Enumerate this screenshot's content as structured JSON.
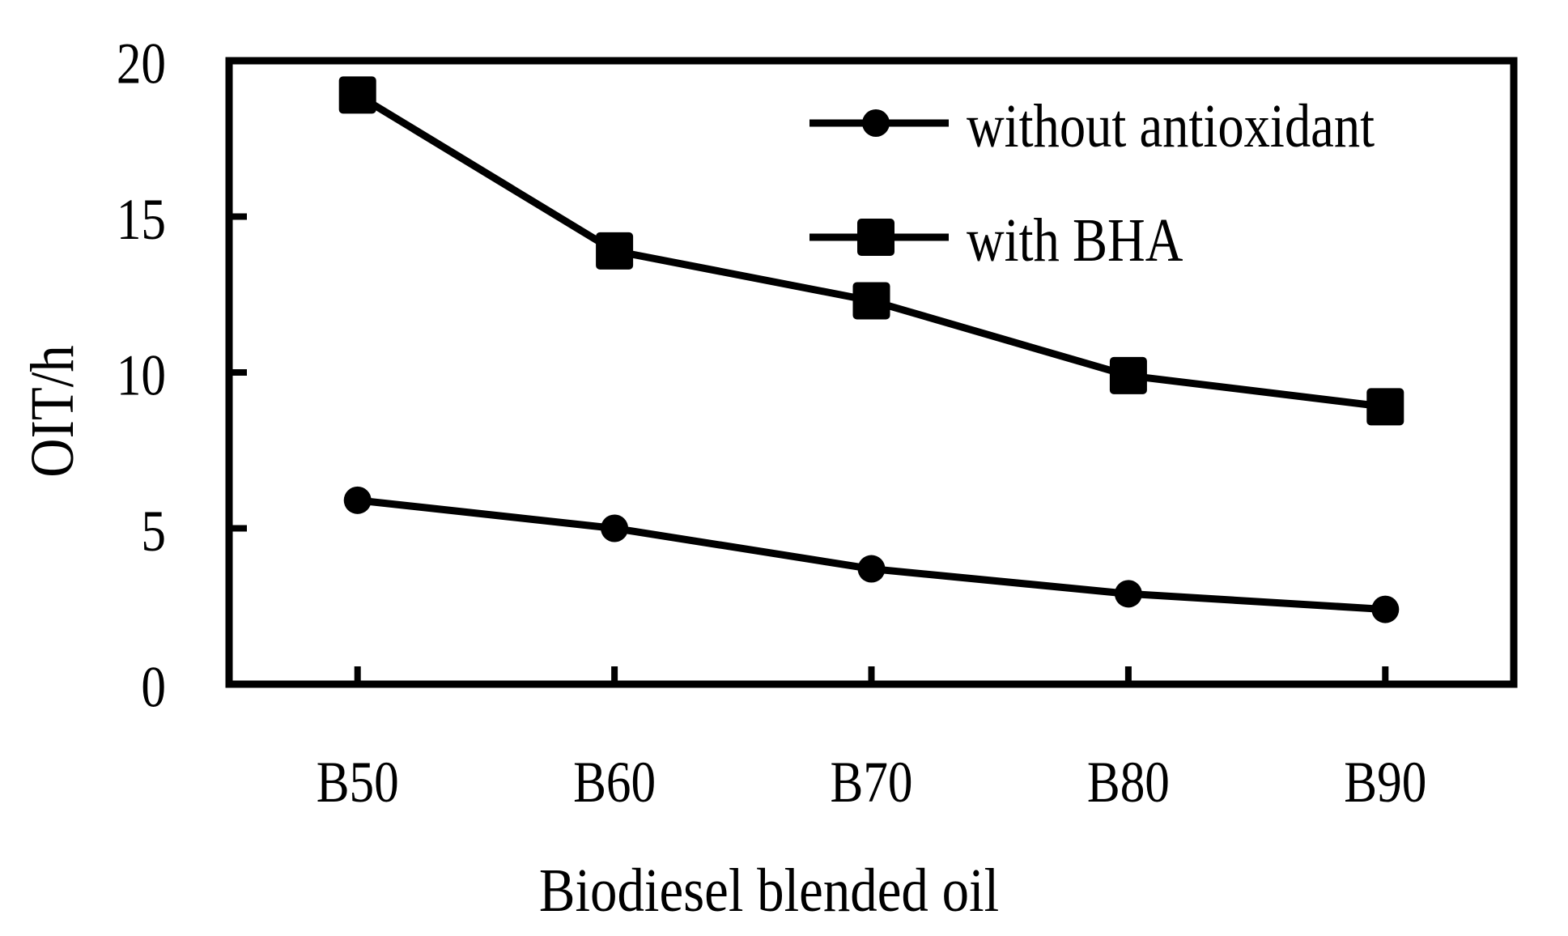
{
  "chart_data": {
    "type": "line",
    "title": "",
    "categories": [
      "B50",
      "B60",
      "B70",
      "B80",
      "B90"
    ],
    "series": [
      {
        "name": "without antioxidant",
        "marker": "circle",
        "values": [
          5.9,
          5.0,
          3.7,
          2.9,
          2.4
        ]
      },
      {
        "name": "with BHA",
        "marker": "square",
        "values": [
          18.9,
          13.9,
          12.3,
          9.9,
          8.9
        ]
      }
    ],
    "xlabel": "Biodiesel blended oil",
    "ylabel": "OIT/h",
    "ylim": [
      0,
      20
    ],
    "yticks": [
      0,
      5,
      10,
      15,
      20
    ],
    "grid": false,
    "legend_position": "top-right-inside",
    "line_color": "#000000",
    "marker_color": "#000000",
    "background": "#ffffff"
  }
}
